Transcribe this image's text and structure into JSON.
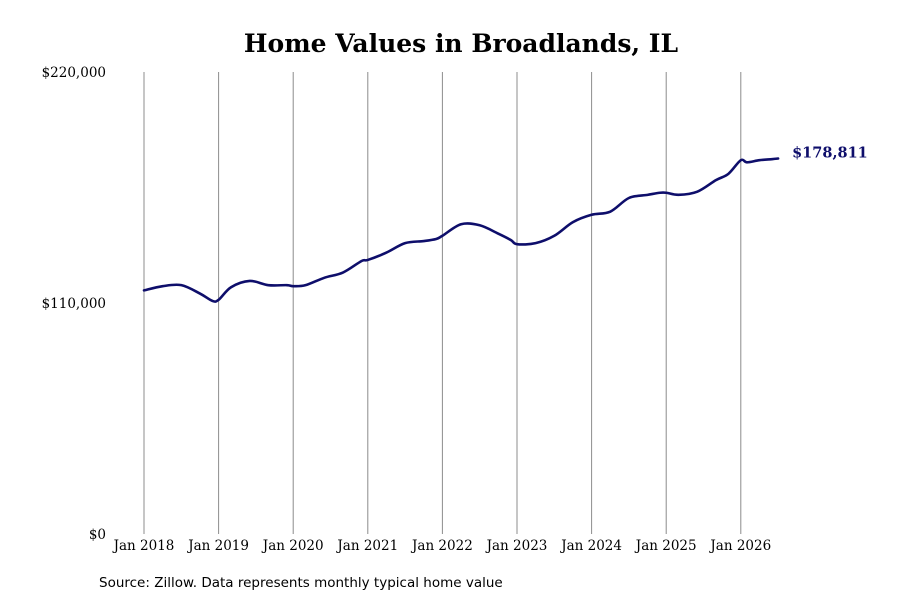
{
  "chart_data": {
    "type": "line",
    "title": "Home Values in Broadlands, IL",
    "xlabel": "",
    "ylabel": "",
    "x_ticks": [
      "Jan 2018",
      "Jan 2019",
      "Jan 2020",
      "Jan 2021",
      "Jan 2022",
      "Jan 2023",
      "Jan 2024",
      "Jan 2025",
      "Jan 2026"
    ],
    "y_ticks": [
      "$220,000",
      "$110,000",
      "$0"
    ],
    "y_tick_values": [
      220000,
      110000,
      0
    ],
    "ylim": [
      0,
      220000
    ],
    "xlim": [
      "2018-01",
      "2026-07"
    ],
    "grid": "vertical lines at each January",
    "end_label": "$178,811",
    "line_color": "#0e0e6b",
    "series": [
      {
        "x": [
          "2018-01",
          "2018-04",
          "2018-07",
          "2018-10",
          "2018-12",
          "2019-01",
          "2019-03",
          "2019-06",
          "2019-09",
          "2019-12",
          "2020-01",
          "2020-03",
          "2020-06",
          "2020-09",
          "2020-12",
          "2021-01",
          "2021-04",
          "2021-07",
          "2021-10",
          "2021-12",
          "2022-01",
          "2022-04",
          "2022-07",
          "2022-10",
          "2022-12",
          "2023-01",
          "2023-04",
          "2023-07",
          "2023-10",
          "2024-01",
          "2024-04",
          "2024-07",
          "2024-10",
          "2024-12",
          "2025-01",
          "2025-03",
          "2025-06",
          "2025-09",
          "2025-11",
          "2026-01",
          "2026-02",
          "2026-04",
          "2026-06",
          "2026-07"
        ],
        "values": [
          116000,
          118000,
          118500,
          114500,
          111000,
          111500,
          117500,
          120500,
          118500,
          118500,
          118000,
          118500,
          122000,
          124500,
          130000,
          130500,
          134000,
          138500,
          139500,
          140500,
          142000,
          147500,
          147000,
          143000,
          140000,
          138000,
          138500,
          142000,
          148500,
          152000,
          153500,
          160000,
          161500,
          162500,
          162500,
          161500,
          163000,
          168500,
          171500,
          178000,
          177000,
          178000,
          178500,
          178811
        ]
      }
    ]
  },
  "source": "Source: Zillow. Data represents monthly typical home value"
}
